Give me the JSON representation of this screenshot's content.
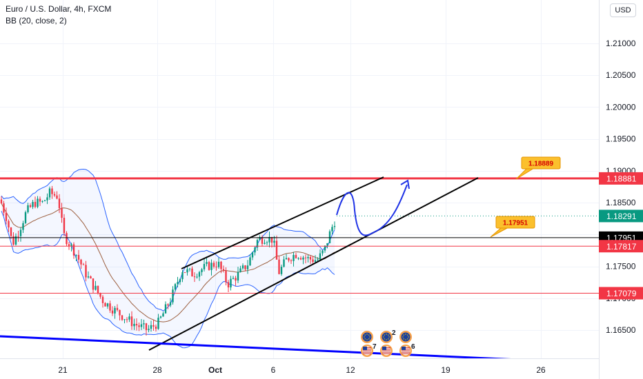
{
  "legend": {
    "symbol": "Euro / U.S. Dollar, 4h, FXCM",
    "indicator": "BB (20, close, 2)"
  },
  "currency_button": "USD",
  "chart_data": {
    "type": "candlestick",
    "y_range": [
      1.1595,
      1.216
    ],
    "y_ticks": [
      "1.21000",
      "1.20500",
      "1.20000",
      "1.19500",
      "1.19000",
      "1.18500",
      "1.17500",
      "1.17000",
      "1.16500"
    ],
    "x_ticks": [
      "21",
      "28",
      "Oct",
      "6",
      "12",
      "19",
      "26"
    ],
    "price_labels": [
      {
        "text": "1.18881",
        "value": 1.18881,
        "color": "#f23645"
      },
      {
        "text": "1.18291",
        "value": 1.18291,
        "color": "#089981"
      },
      {
        "text": "1.17951",
        "value": 1.17951,
        "color": "#000000"
      },
      {
        "text": "1.17817",
        "value": 1.17817,
        "color": "#f23645"
      },
      {
        "text": "1.17079",
        "value": 1.17079,
        "color": "#f23645"
      }
    ],
    "callouts": [
      "1.18889",
      "1.17951"
    ],
    "event_counts": [
      "2",
      "7",
      "6"
    ],
    "horizontal_levels": [
      {
        "value": 1.18881,
        "color": "#f23645",
        "width": 3
      },
      {
        "value": 1.17817,
        "color": "#f23645",
        "width": 1
      },
      {
        "value": 1.17079,
        "color": "#f23645",
        "width": 1
      },
      {
        "value": 1.17951,
        "color": "#000000",
        "width": 1
      }
    ],
    "last_price": 1.18291,
    "bollinger_bands": {
      "period": 20,
      "source": "close",
      "stddev": 2
    },
    "colors": {
      "up": "#089981",
      "down": "#f23645",
      "band": "#2962ff",
      "basis": "#9c5f3f",
      "trendline": "#0000ff",
      "channel": "#000000",
      "projection": "#1e32e6"
    }
  }
}
